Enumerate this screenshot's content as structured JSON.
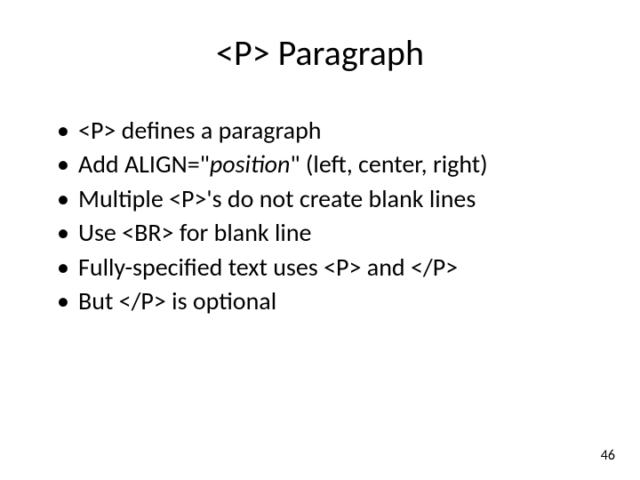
{
  "slide": {
    "title": "<P> Paragraph",
    "bullets": [
      {
        "text": "<P> defines a paragraph"
      },
      {
        "prefix": "Add ALIGN=\"",
        "italic": "position",
        "suffix": "\" (left, center, right)"
      },
      {
        "text": "Multiple <P>'s do not create blank lines"
      },
      {
        "text": "Use <BR> for blank line"
      },
      {
        "text": "Fully-specified text uses <P> and </P>"
      },
      {
        "text": "But </P> is optional"
      }
    ],
    "page_number": "46"
  },
  "style": {
    "background_color": "#ffffff",
    "text_color": "#000000",
    "title_fontsize": 40,
    "bullet_fontsize": 28,
    "page_number_fontsize": 16,
    "font_family": "Calibri, Arial, sans-serif"
  }
}
